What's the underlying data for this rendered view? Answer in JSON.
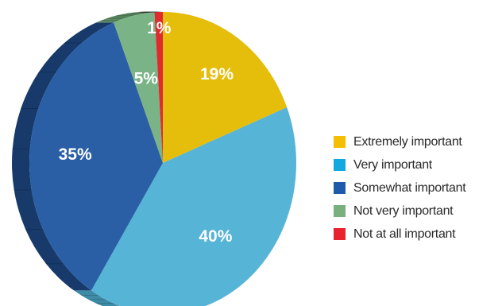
{
  "chart_data": {
    "type": "pie",
    "style": "3d",
    "categories": [
      "Extremely important",
      "Very important",
      "Somewhat important",
      "Not very important",
      "Not at all important"
    ],
    "values": [
      19,
      40,
      35,
      5,
      1
    ],
    "data_labels": [
      "19%",
      "40%",
      "35%",
      "5%",
      "1%"
    ],
    "colors": [
      "#E5BE0C",
      "#56B4D6",
      "#2A5FA6",
      "#7AB386",
      "#E02B2E"
    ],
    "side_colors": [
      "#B89808",
      "#3E8BA8",
      "#173A6B",
      "#5A8A63",
      "#A81E20"
    ],
    "legend_colors": [
      "#F5BE00",
      "#12A8E0",
      "#1E5BA8",
      "#78B07E",
      "#E8232E"
    ],
    "legend_position": "right"
  }
}
